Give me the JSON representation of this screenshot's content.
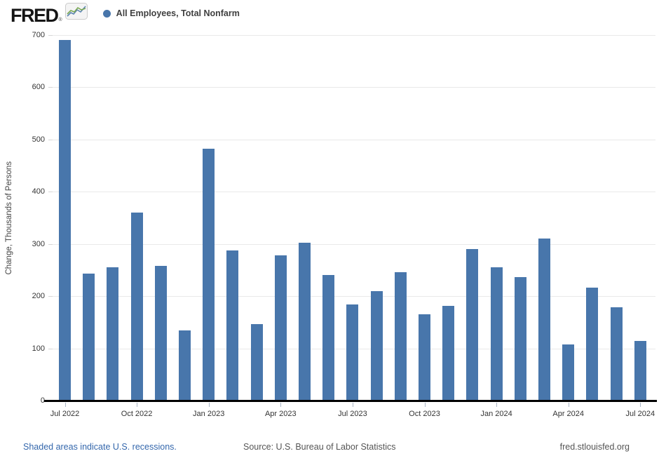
{
  "header": {
    "logo_text": "FRED",
    "registered_mark": "®",
    "sparkline_icon": "fred-line-chart-logo",
    "legend_marker": "blue-dot",
    "series_label": "All Employees, Total Nonfarm"
  },
  "footer": {
    "recession_note": "Shaded areas indicate U.S. recessions.",
    "source": "Source: U.S. Bureau of Labor Statistics",
    "site": "fred.stlouisfed.org"
  },
  "colors": {
    "bar": "#4876ab",
    "legend_dot": "#4876ab",
    "link_blue": "#3467ac",
    "footer_gray": "#555555",
    "gridline": "#e9e9e9",
    "axis_black": "#000000"
  },
  "chart_data": {
    "type": "bar",
    "title": "All Employees, Total Nonfarm",
    "xlabel": "",
    "ylabel": "Change, Thousands of Persons",
    "ylim": [
      0,
      700
    ],
    "y_ticks": [
      0,
      100,
      200,
      300,
      400,
      500,
      600,
      700
    ],
    "grid": true,
    "legend_position": "top-left",
    "bar_color": "#4876ab",
    "x_tick_labels": [
      "Jul 2022",
      "Oct 2022",
      "Jan 2023",
      "Apr 2023",
      "Jul 2023",
      "Oct 2023",
      "Jan 2024",
      "Apr 2024",
      "Jul 2024"
    ],
    "categories": [
      "Jul 2022",
      "Aug 2022",
      "Sep 2022",
      "Oct 2022",
      "Nov 2022",
      "Dec 2022",
      "Jan 2023",
      "Feb 2023",
      "Mar 2023",
      "Apr 2023",
      "May 2023",
      "Jun 2023",
      "Jul 2023",
      "Aug 2023",
      "Sep 2023",
      "Oct 2023",
      "Nov 2023",
      "Dec 2023",
      "Jan 2024",
      "Feb 2024",
      "Mar 2024",
      "Apr 2024",
      "May 2024",
      "Jun 2024",
      "Jul 2024"
    ],
    "values": [
      690,
      243,
      255,
      360,
      258,
      135,
      482,
      287,
      146,
      278,
      303,
      240,
      184,
      210,
      246,
      165,
      182,
      290,
      256,
      236,
      310,
      108,
      216,
      179,
      114
    ]
  }
}
